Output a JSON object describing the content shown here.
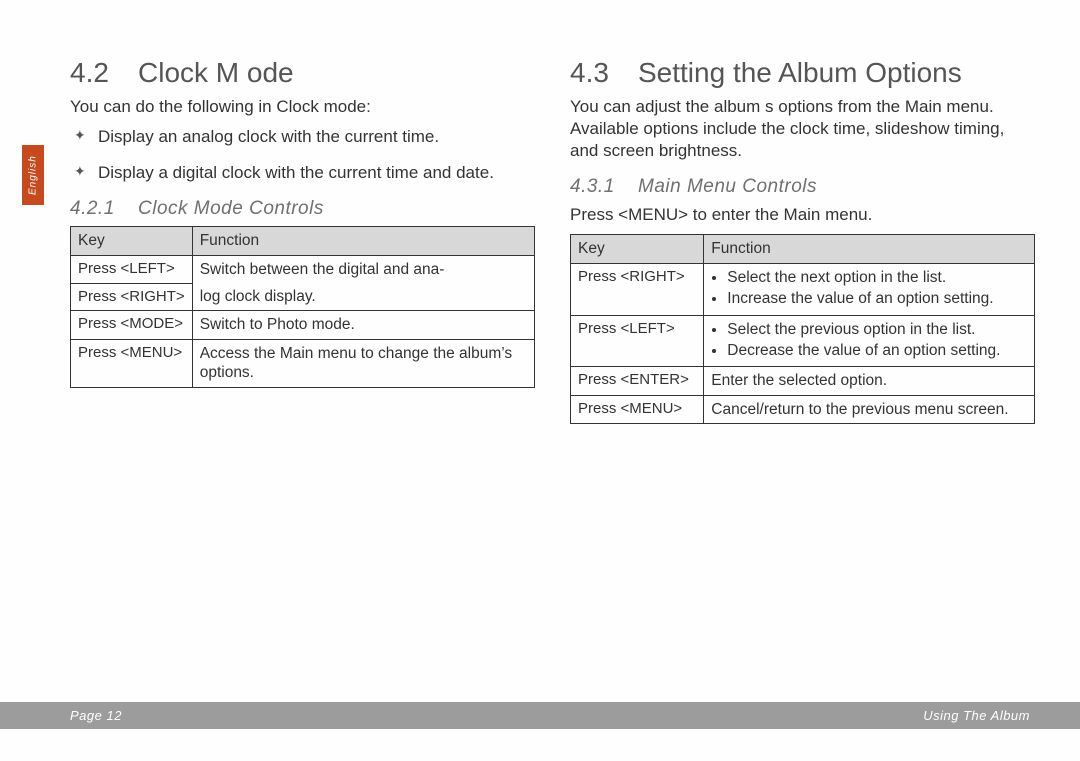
{
  "language_tab": "English",
  "left": {
    "heading_num": "4.2",
    "heading_text": "Clock M ode",
    "intro": "You can do the following in Clock mode:",
    "bullets": [
      "Display an analog clock with the current time.",
      "Display a digital clock with the current time and date."
    ],
    "sub_num": "4.2.1",
    "sub_text": "Clock Mode Controls",
    "table": {
      "header_key": "Key",
      "header_func": "Function",
      "r1_key": "Press <LEFT>",
      "r1_func": "Switch between the digital and ana-",
      "r2_key": "Press <RIGHT>",
      "r2_func": "log clock display.",
      "r3_key": "Press <MODE>",
      "r3_func": "Switch to Photo mode.",
      "r4_key": "Press <MENU>",
      "r4_func": "Access the Main menu to change the album’s options."
    }
  },
  "right": {
    "heading_num": "4.3",
    "heading_text": "Setting the Album Options",
    "intro": "You can adjust the album s options from the Main menu. Available options include the clock time, slideshow timing, and screen brightness.",
    "sub_num": "4.3.1",
    "sub_text": "Main Menu Controls",
    "press_menu": "Press <MENU> to enter the Main menu.",
    "table": {
      "header_key": "Key",
      "header_func": "Function",
      "r1_key": "Press <RIGHT>",
      "r1_b1": "Select the next option in the list.",
      "r1_b2": "Increase the value of an option setting.",
      "r2_key": "Press <LEFT>",
      "r2_b1": "Select the previous option in the list.",
      "r2_b2": "Decrease the value of an option setting.",
      "r3_key": "Press <ENTER>",
      "r3_func": "Enter the selected option.",
      "r4_key": "Press <MENU>",
      "r4_func": "Cancel/return to the previous menu screen."
    }
  },
  "footer_left": "Page 12",
  "footer_right": "Using The Album"
}
